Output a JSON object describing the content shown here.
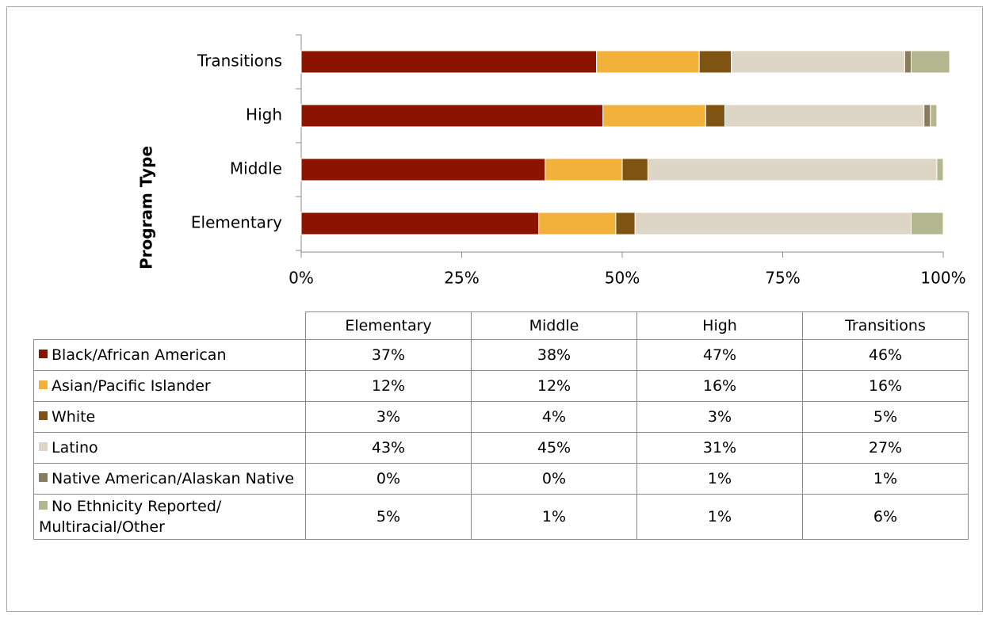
{
  "chart_data": {
    "type": "stacked_barh",
    "ylabel": "Program Type",
    "categories": [
      "Elementary",
      "Middle",
      "High",
      "Transitions"
    ],
    "series": [
      {
        "name": "Black/African American",
        "color": "#8b1300",
        "values": [
          37,
          38,
          47,
          46
        ],
        "value_labels": [
          "37%",
          "38%",
          "47%",
          "46%"
        ]
      },
      {
        "name": "Asian/Pacific Islander",
        "color": "#f2b13a",
        "values": [
          12,
          12,
          16,
          16
        ],
        "value_labels": [
          "12%",
          "12%",
          "16%",
          "16%"
        ]
      },
      {
        "name": "White",
        "color": "#7f5412",
        "values": [
          3,
          4,
          3,
          5
        ],
        "value_labels": [
          "3%",
          "4%",
          "3%",
          "5%"
        ]
      },
      {
        "name": "Latino",
        "color": "#ddd5c5",
        "values": [
          43,
          45,
          31,
          27
        ],
        "value_labels": [
          "43%",
          "45%",
          "31%",
          "27%"
        ]
      },
      {
        "name": "Native American/Alaskan Native",
        "color": "#8a7b5f",
        "values": [
          0,
          0,
          1,
          1
        ],
        "value_labels": [
          "0%",
          "0%",
          "1%",
          "1%"
        ]
      },
      {
        "name": "No Ethnicity Reported/ Multiracial/Other",
        "color": "#b3b78f",
        "values": [
          5,
          1,
          1,
          6
        ],
        "value_labels": [
          "5%",
          "1%",
          "1%",
          "6%"
        ]
      }
    ],
    "xlim": [
      0,
      100
    ],
    "xticks": [
      {
        "value": 0,
        "label": "0%"
      },
      {
        "value": 25,
        "label": "25%"
      },
      {
        "value": 50,
        "label": "50%"
      },
      {
        "value": 75,
        "label": "75%"
      },
      {
        "value": 100,
        "label": "100%"
      }
    ],
    "grid": false
  }
}
